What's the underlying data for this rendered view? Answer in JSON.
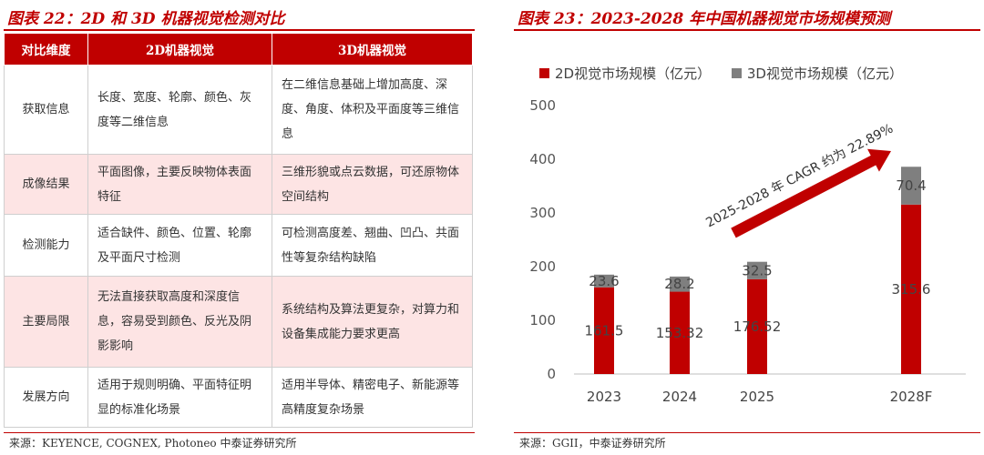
{
  "left": {
    "title": "图表 22：2D 和 3D 机器视觉检测对比",
    "source": "来源：KEYENCE, COGNEX, Photoneo 中泰证券研究所",
    "headers": [
      "对比维度",
      "2D机器视觉",
      "3D机器视觉"
    ],
    "rows": [
      {
        "dim": "获取信息",
        "d2": "长度、宽度、轮廓、颜色、灰度等二维信息",
        "d3": "在二维信息基础上增加高度、深度、角度、体积及平面度等三维信息"
      },
      {
        "dim": "成像结果",
        "d2": "平面图像，主要反映物体表面特征",
        "d3": "三维形貌或点云数据，可还原物体空间结构"
      },
      {
        "dim": "检测能力",
        "d2": "适合缺件、颜色、位置、轮廓及平面尺寸检测",
        "d3": "可检测高度差、翘曲、凹凸、共面性等复杂结构缺陷"
      },
      {
        "dim": "主要局限",
        "d2": "无法直接获取高度和深度信息，容易受到颜色、反光及阴影影响",
        "d3": "系统结构及算法更复杂，对算力和设备集成能力要求更高"
      },
      {
        "dim": "发展方向",
        "d2": "适用于规则明确、平面特征明显的标准化场景",
        "d3": "适用半导体、精密电子、新能源等高精度复杂场景"
      }
    ]
  },
  "right": {
    "title": "图表 23：2023-2028 年中国机器视觉市场规模预测",
    "source": "来源：GGII，中泰证券研究所"
  },
  "colors": {
    "accent": "#c00000",
    "bar2d": "#c00000",
    "bar3d": "#7f7f7f",
    "pink_row": "#fde4e4"
  },
  "chart_data": {
    "type": "bar",
    "stacked": true,
    "categories": [
      "2023",
      "2024",
      "2025",
      "2028F"
    ],
    "series": [
      {
        "name": "2D视觉市场规模（亿元）",
        "values": [
          161.5,
          153.32,
          176.52,
          315.6
        ],
        "labels": [
          "161.5",
          "153.32",
          "176.52",
          "315.6"
        ]
      },
      {
        "name": "3D视觉市场规模（亿元）",
        "values": [
          23.6,
          28.2,
          32.5,
          70.4
        ],
        "labels": [
          "23.6",
          "28.2",
          "32.5",
          "70.4"
        ]
      }
    ],
    "ylim": [
      0,
      500
    ],
    "yticks": [
      0,
      100,
      200,
      300,
      400,
      500
    ],
    "grid": false,
    "legend": "top-left",
    "annotation": "2025-2028 年 CAGR 约为 22.89%"
  }
}
